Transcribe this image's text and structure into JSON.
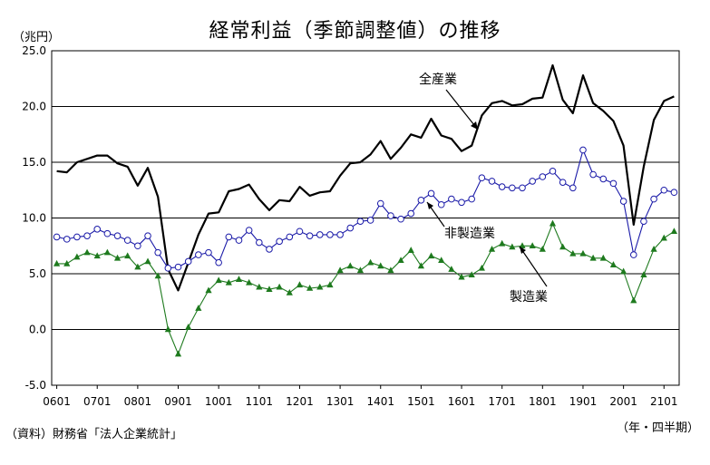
{
  "header": {
    "title": "経常利益（季節調整値）の推移",
    "unit": "（兆円）"
  },
  "footer": {
    "source": "（資料）財務省「法人企業統計」",
    "period": "（年・四半期）"
  },
  "chart_data": {
    "type": "line",
    "title": "経常利益（季節調整値）の推移",
    "ylabel": "（兆円）",
    "xlabel": "（年・四半期）",
    "ylim": [
      -5.0,
      25.0
    ],
    "yticks": [
      "25.0",
      "20.0",
      "15.0",
      "10.0",
      "5.0",
      "0.0",
      "-5.0"
    ],
    "x_tick_labels": [
      "0601",
      "0701",
      "0801",
      "0901",
      "1001",
      "1101",
      "1201",
      "1301",
      "1401",
      "1501",
      "1601",
      "1701",
      "1801",
      "1901",
      "2001",
      "2101"
    ],
    "grid": true,
    "colors": {
      "all": "#000000",
      "nonmfg": "#1a1aa8",
      "mfg": "#1e7a1e"
    },
    "series": [
      {
        "name": "全産業",
        "key": "all",
        "marker": "none",
        "values": [
          14.2,
          14.1,
          15.0,
          15.3,
          15.6,
          15.6,
          14.9,
          14.6,
          12.9,
          14.5,
          11.9,
          5.4,
          3.5,
          6.0,
          8.5,
          10.4,
          10.5,
          12.4,
          12.6,
          13.0,
          11.7,
          10.7,
          11.6,
          11.5,
          12.8,
          12.0,
          12.3,
          12.4,
          13.8,
          14.9,
          15.0,
          15.7,
          16.9,
          15.3,
          16.3,
          17.5,
          17.2,
          18.9,
          17.4,
          17.1,
          16.0,
          16.5,
          19.2,
          20.3,
          20.5,
          20.1,
          20.2,
          20.7,
          20.8,
          23.7,
          20.6,
          19.4,
          22.8,
          20.3,
          19.6,
          18.7,
          16.5,
          9.4,
          14.6,
          18.8,
          20.5,
          20.9
        ]
      },
      {
        "name": "非製造業",
        "key": "nonmfg",
        "marker": "circle",
        "values": [
          8.3,
          8.1,
          8.3,
          8.4,
          9.0,
          8.6,
          8.4,
          8.0,
          7.5,
          8.4,
          6.9,
          5.5,
          5.6,
          6.1,
          6.7,
          6.9,
          6.0,
          8.3,
          8.0,
          8.9,
          7.8,
          7.2,
          7.9,
          8.3,
          8.8,
          8.4,
          8.5,
          8.5,
          8.5,
          9.1,
          9.7,
          9.8,
          11.3,
          10.2,
          9.9,
          10.4,
          11.6,
          12.2,
          11.2,
          11.7,
          11.4,
          11.7,
          13.6,
          13.3,
          12.8,
          12.7,
          12.7,
          13.3,
          13.7,
          14.2,
          13.2,
          12.7,
          16.1,
          13.9,
          13.5,
          13.1,
          11.5,
          6.7,
          9.7,
          11.7,
          12.5,
          12.3
        ]
      },
      {
        "name": "製造業",
        "key": "mfg",
        "marker": "triangle",
        "values": [
          5.9,
          5.9,
          6.5,
          6.9,
          6.6,
          6.9,
          6.4,
          6.6,
          5.6,
          6.1,
          4.8,
          0.0,
          -2.2,
          0.2,
          1.9,
          3.5,
          4.4,
          4.2,
          4.5,
          4.2,
          3.8,
          3.6,
          3.8,
          3.3,
          4.0,
          3.7,
          3.8,
          4.0,
          5.3,
          5.7,
          5.3,
          6.0,
          5.7,
          5.3,
          6.2,
          7.1,
          5.7,
          6.6,
          6.2,
          5.4,
          4.7,
          4.9,
          5.5,
          7.2,
          7.7,
          7.4,
          7.5,
          7.5,
          7.2,
          9.5,
          7.4,
          6.8,
          6.8,
          6.4,
          6.4,
          5.8,
          5.2,
          2.6,
          4.9,
          7.2,
          8.2,
          8.8
        ]
      }
    ],
    "annotations": [
      "全産業",
      "非製造業",
      "製造業"
    ]
  }
}
